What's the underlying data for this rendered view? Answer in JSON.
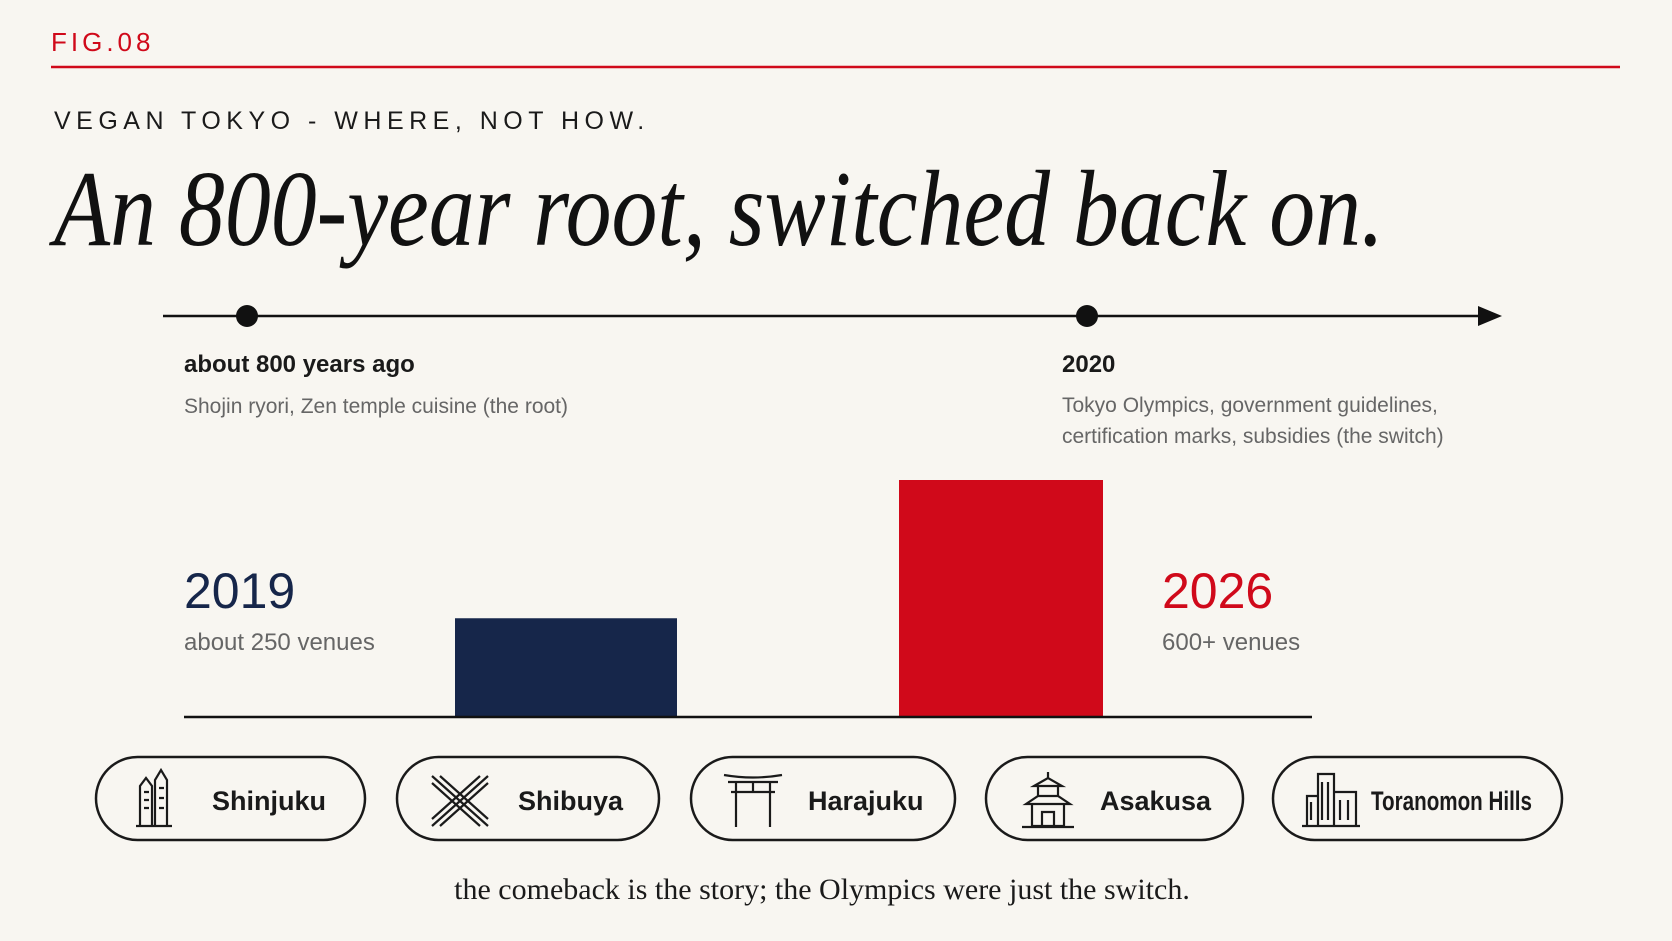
{
  "fig_label": "FIG.08",
  "kicker": "VEGAN TOKYO - WHERE, NOT HOW.",
  "headline": "An 800-year root, switched back on.",
  "timeline": [
    {
      "label": "about 800 years ago",
      "text": [
        "Shojin ryori, Zen temple cuisine (the root)"
      ]
    },
    {
      "label": "2020",
      "text": [
        "Tokyo Olympics, government guidelines,",
        "certification marks, subsidies (the switch)"
      ]
    }
  ],
  "chart_data": {
    "type": "bar",
    "categories": [
      "2019",
      "2026"
    ],
    "values": [
      250,
      600
    ],
    "value_labels": [
      "about 250 venues",
      "600+ venues"
    ],
    "colors": [
      "#16264a",
      "#d0091a"
    ]
  },
  "districts": [
    "Shinjuku",
    "Shibuya",
    "Harajuku",
    "Asakusa",
    "Toranomon Hills"
  ],
  "footer": "the comeback is the story; the Olympics were just the switch."
}
